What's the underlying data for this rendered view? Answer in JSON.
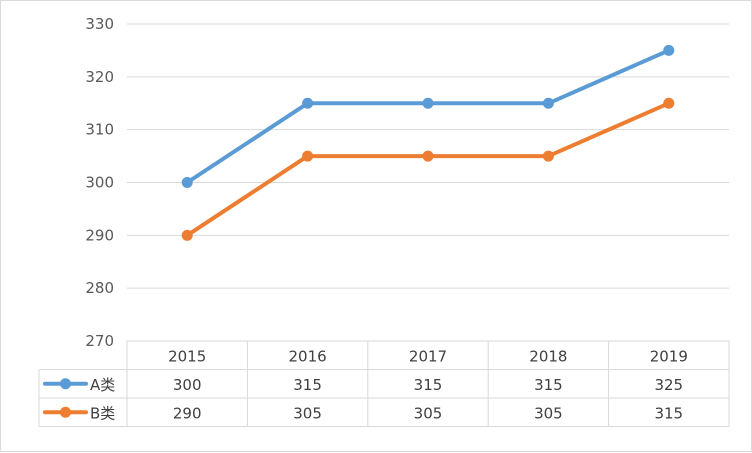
{
  "chart_data": {
    "type": "line",
    "title": "",
    "xlabel": "",
    "ylabel": "",
    "categories": [
      "2015",
      "2016",
      "2017",
      "2018",
      "2019"
    ],
    "ylim": [
      270,
      330
    ],
    "yticks": [
      270,
      280,
      290,
      300,
      310,
      320,
      330
    ],
    "grid": true,
    "legend": "data-table",
    "series": [
      {
        "name": "A类",
        "values": [
          300,
          315,
          315,
          315,
          325
        ],
        "color": "#5b9bd5"
      },
      {
        "name": "B类",
        "values": [
          290,
          305,
          305,
          305,
          315
        ],
        "color": "#ed7d31"
      }
    ]
  }
}
